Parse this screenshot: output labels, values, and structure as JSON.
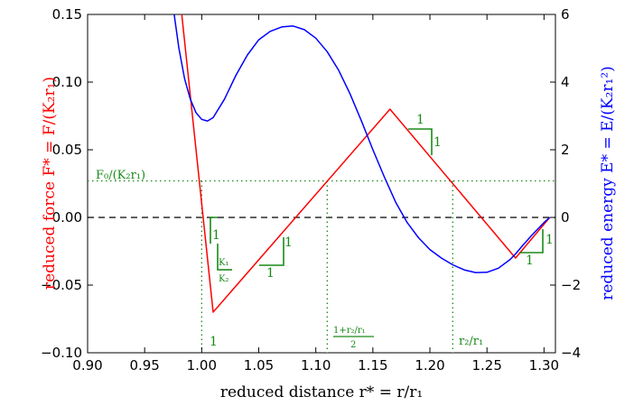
{
  "chart_data": {
    "type": "line",
    "xlabel": "reduced distance r* = r/r₁",
    "ylabel_left": "reduced force F* = F/(K₂r₁)",
    "ylabel_right": "reduced energy E* = E/(K₂r₁²)",
    "xlim": [
      0.9,
      1.31
    ],
    "ylim_left": [
      -0.1,
      0.15
    ],
    "ylim_right": [
      -4,
      6
    ],
    "x_ticks": [
      "0.90",
      "0.95",
      "1.00",
      "1.05",
      "1.10",
      "1.15",
      "1.20",
      "1.25",
      "1.30"
    ],
    "y_left_ticks": [
      "−0.10",
      "−0.05",
      "0.00",
      "0.05",
      "0.10",
      "0.15"
    ],
    "y_right_ticks": [
      "−4",
      "−2",
      "0",
      "2",
      "4",
      "6"
    ],
    "colors": {
      "force": "#ff0000",
      "energy": "#0000ff",
      "annotation": "#1a8a1a",
      "zero": "#000000"
    },
    "series": [
      {
        "axis": "left",
        "color": "#ff0000",
        "x": [
          0.98,
          1.01,
          1.165,
          1.275,
          1.305
        ],
        "y": [
          0.17,
          -0.07,
          0.08,
          -0.03,
          0.0
        ]
      },
      {
        "axis": "right",
        "color": "#0000ff",
        "x": [
          0.975,
          0.98,
          0.985,
          0.99,
          0.995,
          1.0,
          1.005,
          1.01,
          1.02,
          1.03,
          1.04,
          1.05,
          1.06,
          1.07,
          1.08,
          1.09,
          1.1,
          1.11,
          1.12,
          1.13,
          1.14,
          1.15,
          1.16,
          1.17,
          1.18,
          1.19,
          1.2,
          1.21,
          1.22,
          1.23,
          1.24,
          1.25,
          1.26,
          1.27,
          1.275,
          1.28,
          1.29,
          1.3,
          1.305
        ],
        "y": [
          6.2,
          5.0,
          4.1,
          3.5,
          3.1,
          2.9,
          2.85,
          2.95,
          3.5,
          4.2,
          4.8,
          5.25,
          5.5,
          5.63,
          5.66,
          5.55,
          5.3,
          4.9,
          4.35,
          3.65,
          2.85,
          2.0,
          1.2,
          0.45,
          -0.15,
          -0.6,
          -0.95,
          -1.2,
          -1.4,
          -1.55,
          -1.63,
          -1.62,
          -1.5,
          -1.25,
          -1.08,
          -0.88,
          -0.5,
          -0.15,
          0.0
        ]
      }
    ],
    "reference_lines": {
      "zero_force": 0.0,
      "F0_level": 0.027,
      "vertical_x": [
        1.0,
        1.11,
        1.22
      ]
    },
    "annotations": {
      "F0": "F₀/(K₂r₁)",
      "slope_one_bottom": "1",
      "midpoint_num": "1+r₂/r₁",
      "midpoint_den": "2",
      "r2_label": "r₂/r₁",
      "k_ratio_num": "K₁",
      "k_ratio_den": "K₂",
      "slope_labels": [
        "1",
        "1",
        "1",
        "1",
        "1",
        "1",
        "1"
      ]
    }
  }
}
